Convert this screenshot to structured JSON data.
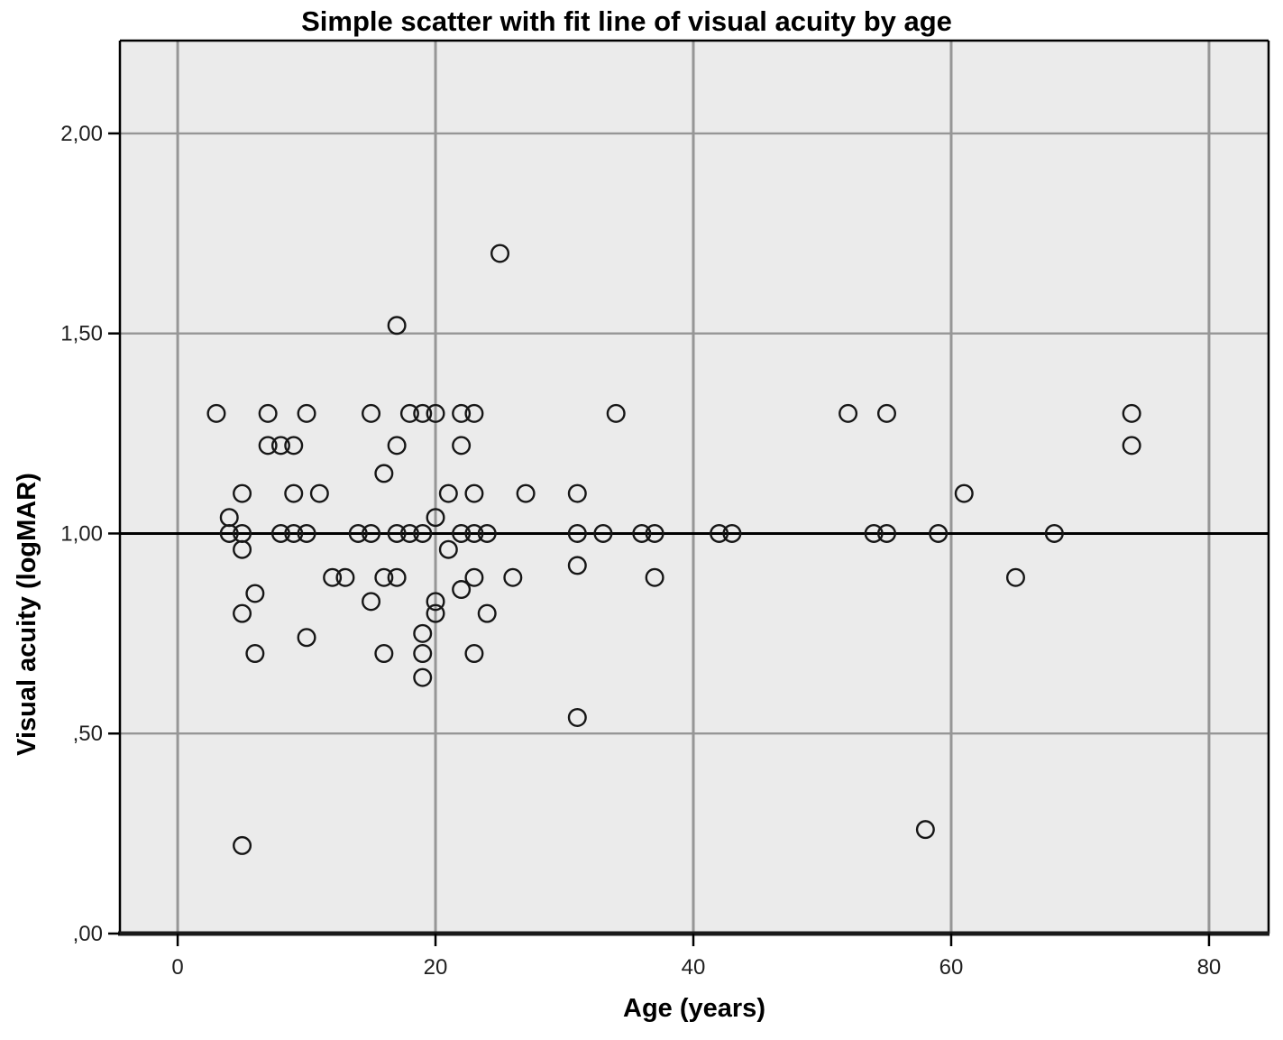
{
  "title": "Simple scatter with fit line of visual acuity by age",
  "colors": {
    "plot_background": "#ebebeb",
    "gridline": "#969696",
    "frame": "#000000",
    "frame_bottom": "#1a1a1a",
    "fit_line": "#000000",
    "point_stroke": "#161616",
    "tick": "#000000",
    "tick_label": "#1f1f1f"
  },
  "chart_data": {
    "type": "scatter",
    "title": "Simple scatter with fit line of visual acuity by age",
    "xlabel": "Age (years)",
    "ylabel": "Visual acuity (logMAR)",
    "grid": true,
    "legend": "none",
    "marker": "hollow-circle",
    "x_axis": {
      "min": -4.48,
      "max": 84.62,
      "ticks": [
        0,
        20,
        40,
        60,
        80
      ],
      "tick_labels": [
        "0",
        "20",
        "40",
        "60",
        "80"
      ]
    },
    "y_axis": {
      "min": 0.0,
      "max": 2.232,
      "ticks": [
        0.0,
        0.5,
        1.0,
        1.5,
        2.0
      ],
      "tick_labels": [
        ",00",
        ",50",
        "1,00",
        "1,50",
        "2,00"
      ]
    },
    "fit_line": {
      "x1": -4.48,
      "y1": 1.0,
      "x2": 84.62,
      "y2": 1.0
    },
    "points": [
      [
        25,
        1.7
      ],
      [
        17,
        1.52
      ],
      [
        3,
        1.3
      ],
      [
        7,
        1.3
      ],
      [
        10,
        1.3
      ],
      [
        15,
        1.3
      ],
      [
        18,
        1.3
      ],
      [
        19,
        1.3
      ],
      [
        20,
        1.3
      ],
      [
        22,
        1.3
      ],
      [
        23,
        1.3
      ],
      [
        34,
        1.3
      ],
      [
        52,
        1.3
      ],
      [
        55,
        1.3
      ],
      [
        74,
        1.3
      ],
      [
        7,
        1.22
      ],
      [
        8,
        1.22
      ],
      [
        9,
        1.22
      ],
      [
        17,
        1.22
      ],
      [
        22,
        1.22
      ],
      [
        74,
        1.22
      ],
      [
        16,
        1.15
      ],
      [
        5,
        1.1
      ],
      [
        9,
        1.1
      ],
      [
        11,
        1.1
      ],
      [
        21,
        1.1
      ],
      [
        23,
        1.1
      ],
      [
        27,
        1.1
      ],
      [
        31,
        1.1
      ],
      [
        61,
        1.1
      ],
      [
        4,
        1.04
      ],
      [
        20,
        1.04
      ],
      [
        4,
        1.0
      ],
      [
        5,
        1.0
      ],
      [
        8,
        1.0
      ],
      [
        9,
        1.0
      ],
      [
        10,
        1.0
      ],
      [
        14,
        1.0
      ],
      [
        15,
        1.0
      ],
      [
        17,
        1.0
      ],
      [
        18,
        1.0
      ],
      [
        19,
        1.0
      ],
      [
        22,
        1.0
      ],
      [
        23,
        1.0
      ],
      [
        24,
        1.0
      ],
      [
        31,
        1.0
      ],
      [
        33,
        1.0
      ],
      [
        36,
        1.0
      ],
      [
        37,
        1.0
      ],
      [
        42,
        1.0
      ],
      [
        43,
        1.0
      ],
      [
        54,
        1.0
      ],
      [
        55,
        1.0
      ],
      [
        59,
        1.0
      ],
      [
        68,
        1.0
      ],
      [
        5,
        0.96
      ],
      [
        21,
        0.96
      ],
      [
        31,
        0.92
      ],
      [
        12,
        0.89
      ],
      [
        13,
        0.89
      ],
      [
        16,
        0.89
      ],
      [
        17,
        0.89
      ],
      [
        23,
        0.89
      ],
      [
        26,
        0.89
      ],
      [
        37,
        0.89
      ],
      [
        65,
        0.89
      ],
      [
        6,
        0.85
      ],
      [
        22,
        0.86
      ],
      [
        15,
        0.83
      ],
      [
        20,
        0.83
      ],
      [
        5,
        0.8
      ],
      [
        20,
        0.8
      ],
      [
        24,
        0.8
      ],
      [
        10,
        0.74
      ],
      [
        19,
        0.75
      ],
      [
        6,
        0.7
      ],
      [
        16,
        0.7
      ],
      [
        19,
        0.7
      ],
      [
        23,
        0.7
      ],
      [
        19,
        0.64
      ],
      [
        31,
        0.54
      ],
      [
        58,
        0.26
      ],
      [
        5,
        0.22
      ]
    ]
  }
}
